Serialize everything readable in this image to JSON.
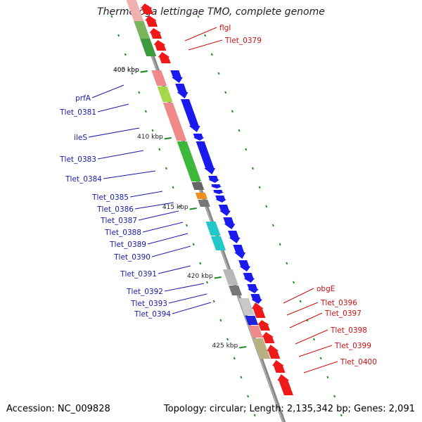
{
  "title": "Thermotoga lettingae TMO, complete genome",
  "footer": {
    "accession": "Accession: NC_009828",
    "info": "Topology: circular; Length: 2,135,342 bp; Genes: 2,091"
  },
  "ticks": [
    "400 kbp",
    "405 kbp",
    "410 kbp",
    "415 kbp",
    "420 kbp",
    "425 kbp"
  ],
  "colors": {
    "backbone": "#999999",
    "forward_gene": "#1a1aee",
    "reverse_gene": "#ee1a1a",
    "forward_label": "#1a1aa8",
    "reverse_label": "#cc1111",
    "tick_mark": "#228b22"
  },
  "labels_reverse": [
    "flgI",
    "Tlet_0379",
    "obgE",
    "Tlet_0396",
    "Tlet_0397",
    "Tlet_0398",
    "Tlet_0399",
    "Tlet_0400"
  ],
  "labels_forward": [
    "prfA",
    "Tlet_0381",
    "ileS",
    "Tlet_0383",
    "Tlet_0384",
    "Tlet_0385",
    "Tlet_0386",
    "Tlet_0387",
    "Tlet_0388",
    "Tlet_0389",
    "Tlet_0390",
    "Tlet_0391",
    "Tlet_0392",
    "Tlet_0393",
    "Tlet_0394"
  ]
}
